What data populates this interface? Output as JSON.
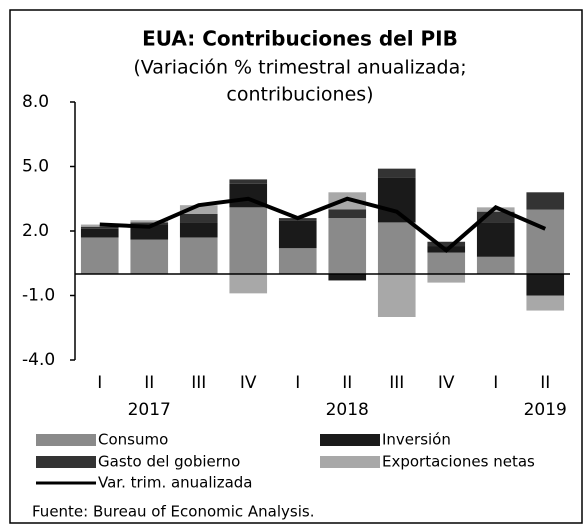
{
  "chart_data": {
    "type": "stacked_bar_line",
    "title": "EUA: Contribuciones del PIB",
    "subtitle": [
      "(Variación % trimestral anualizada;",
      "contribuciones)"
    ],
    "categories": [
      "I",
      "II",
      "III",
      "IV",
      "I",
      "II",
      "III",
      "IV",
      "I",
      "II"
    ],
    "x_groups": [
      "2017",
      "2018",
      "2019"
    ],
    "series": [
      {
        "name": "Consumo",
        "color": "#8a8a8a",
        "values": [
          1.7,
          1.6,
          1.7,
          3.1,
          1.2,
          2.6,
          2.4,
          1.0,
          0.8,
          3.0
        ]
      },
      {
        "name": "Inversión",
        "color": "#1a1a1a",
        "values": [
          0.4,
          0.7,
          0.7,
          1.1,
          1.3,
          -0.3,
          2.1,
          0.3,
          1.6,
          -1.0
        ]
      },
      {
        "name": "Gasto del gobierno",
        "color": "#333333",
        "values": [
          0.1,
          0.1,
          0.4,
          0.2,
          0.1,
          0.4,
          0.4,
          0.2,
          0.5,
          0.8
        ]
      },
      {
        "name": "Exportaciones netas",
        "color": "#a8a8a8",
        "values": [
          0.1,
          0.1,
          0.4,
          -0.9,
          0.0,
          0.8,
          -2.0,
          -0.4,
          0.2,
          -0.7
        ]
      }
    ],
    "line_series": {
      "name": "Var. trim. anualizada",
      "color": "#000000",
      "values": [
        2.3,
        2.2,
        3.2,
        3.5,
        2.6,
        3.5,
        2.9,
        1.1,
        3.1,
        2.1
      ]
    },
    "ylim": [
      -4,
      8
    ],
    "yticks": [
      {
        "value": -4,
        "label": "-4.0"
      },
      {
        "value": -1,
        "label": "-1.0"
      },
      {
        "value": 2,
        "label": "2.0"
      },
      {
        "value": 5,
        "label": "5.0"
      },
      {
        "value": 8,
        "label": "8.0"
      }
    ],
    "source": "Fuente:  Bureau of Economic Analysis."
  }
}
